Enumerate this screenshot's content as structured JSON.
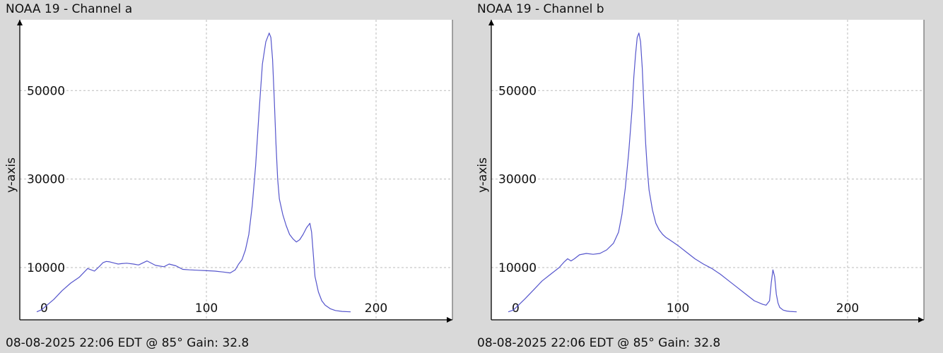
{
  "chart_data": [
    {
      "type": "line",
      "title": "NOAA 19 - Channel a",
      "footer": "08-08-2025 22:06 EDT @ 85° Gain: 32.8",
      "ylabel": "y-axis",
      "xlabel": "",
      "xlim": [
        -10,
        245
      ],
      "ylim": [
        -1800,
        66000
      ],
      "xticks": [
        0,
        100,
        200
      ],
      "yticks": [
        10000,
        30000,
        50000
      ],
      "grid": true,
      "line_color": "#5555cc",
      "series": [
        {
          "x": [
            0,
            3,
            6,
            10,
            15,
            20,
            25,
            30,
            34,
            37,
            39,
            41,
            43,
            46,
            48,
            50,
            53,
            57,
            60,
            65,
            70,
            75,
            78,
            82,
            86,
            90,
            95,
            100,
            105,
            110,
            114,
            117,
            119,
            121,
            123,
            125,
            127,
            129,
            131,
            133,
            135,
            137,
            138,
            139,
            140,
            141,
            142,
            143,
            145,
            147,
            149,
            151,
            153,
            155,
            157,
            159,
            161,
            162,
            163,
            164,
            166,
            168,
            170,
            173,
            176,
            180,
            185
          ],
          "y": [
            0,
            500,
            1500,
            2800,
            4800,
            6500,
            7800,
            9800,
            9200,
            10300,
            11100,
            11400,
            11300,
            11000,
            10800,
            10900,
            11000,
            10800,
            10600,
            11500,
            10500,
            10200,
            10800,
            10400,
            9600,
            9500,
            9400,
            9300,
            9200,
            9000,
            8800,
            9500,
            10800,
            11800,
            14000,
            17500,
            24000,
            33000,
            45000,
            56000,
            61000,
            63000,
            62000,
            57000,
            48000,
            38000,
            30000,
            25500,
            22000,
            19500,
            17500,
            16500,
            15800,
            16300,
            17500,
            19000,
            20000,
            18000,
            13000,
            8000,
            4500,
            2500,
            1500,
            700,
            300,
            100,
            0
          ]
        }
      ]
    },
    {
      "type": "line",
      "title": "NOAA 19 - Channel b",
      "footer": "08-08-2025 22:06 EDT @ 85° Gain: 32.8",
      "ylabel": "y-axis",
      "xlabel": "",
      "xlim": [
        -10,
        245
      ],
      "ylim": [
        -1800,
        66000
      ],
      "xticks": [
        0,
        100,
        200
      ],
      "yticks": [
        10000,
        30000,
        50000
      ],
      "grid": true,
      "line_color": "#5555cc",
      "series": [
        {
          "x": [
            0,
            3,
            6,
            10,
            15,
            20,
            25,
            30,
            33,
            35,
            37,
            39,
            42,
            46,
            50,
            54,
            58,
            62,
            65,
            67,
            69,
            71,
            73,
            74,
            75,
            76,
            77,
            78,
            79,
            80,
            81,
            82,
            83,
            85,
            87,
            89,
            91,
            93,
            95,
            97,
            100,
            105,
            110,
            115,
            120,
            125,
            130,
            135,
            140,
            145,
            150,
            152,
            154,
            155,
            156,
            157,
            158,
            159,
            160,
            162,
            164,
            166,
            170
          ],
          "y": [
            0,
            400,
            1500,
            3000,
            5000,
            7000,
            8500,
            10000,
            11300,
            12000,
            11500,
            12000,
            12900,
            13200,
            13000,
            13200,
            14000,
            15500,
            18000,
            22000,
            28000,
            36000,
            46000,
            53000,
            58000,
            62000,
            63000,
            61000,
            55000,
            46000,
            38000,
            32000,
            27500,
            23000,
            20000,
            18500,
            17500,
            16800,
            16300,
            15800,
            15000,
            13500,
            12000,
            10800,
            9800,
            8500,
            7000,
            5500,
            4000,
            2500,
            1700,
            1500,
            2500,
            6500,
            9500,
            8000,
            4000,
            2000,
            1000,
            400,
            200,
            100,
            0
          ]
        }
      ]
    }
  ]
}
